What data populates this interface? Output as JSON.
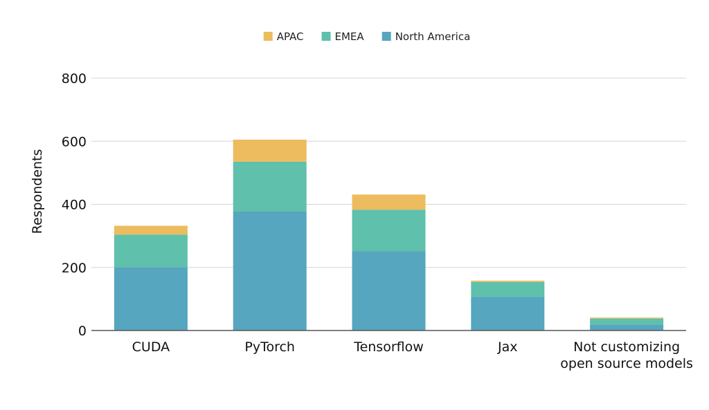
{
  "chart_data": {
    "type": "bar",
    "stacked": true,
    "categories": [
      [
        "CUDA"
      ],
      [
        "PyTorch"
      ],
      [
        "Tensorflow"
      ],
      [
        "Jax"
      ],
      [
        "Not customizing",
        "open source models"
      ]
    ],
    "series": [
      {
        "name": "North America",
        "color": "#56a6bf",
        "values": [
          201,
          377,
          251,
          107,
          19
        ]
      },
      {
        "name": "EMEA",
        "color": "#5fc0ab",
        "values": [
          103,
          158,
          132,
          47,
          19
        ]
      },
      {
        "name": "APAC",
        "color": "#ecbc5e",
        "values": [
          28,
          70,
          48,
          4,
          3
        ]
      }
    ],
    "legend_order": [
      "APAC",
      "EMEA",
      "North America"
    ],
    "legend_position": "top-center",
    "ylabel": "Respondents",
    "xlabel": "",
    "ylim": [
      0,
      800
    ],
    "yticks": [
      0,
      200,
      400,
      600,
      800
    ],
    "grid": true
  }
}
